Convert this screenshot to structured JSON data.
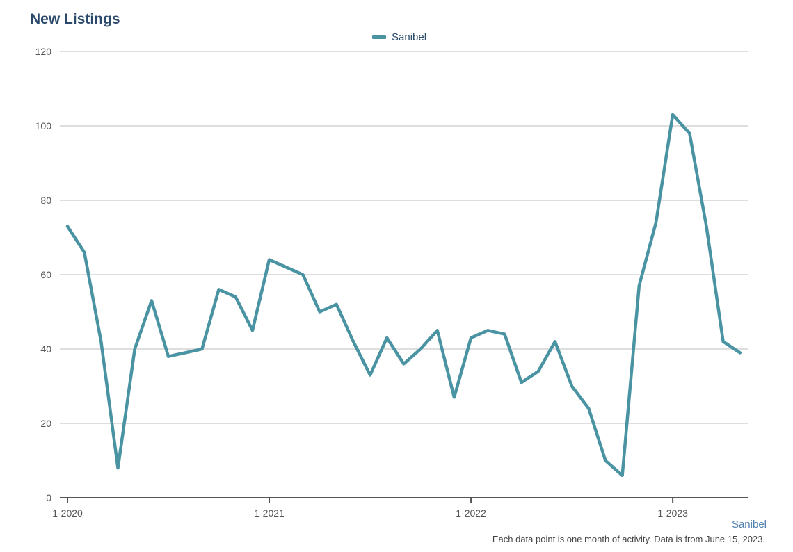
{
  "title": "New Listings",
  "source_label": "Sanibel",
  "footnote": "Each data point is one month of activity. Data is from June 15, 2023.",
  "colors": {
    "series": "#4a93a3",
    "grid": "#c9c9c9",
    "axis": "#555555",
    "title": "#2b4a6b"
  },
  "chart_data": {
    "type": "line",
    "title": "New Listings",
    "xlabel": "",
    "ylabel": "",
    "ylim": [
      0,
      120
    ],
    "yticks": [
      0,
      20,
      40,
      60,
      80,
      100,
      120
    ],
    "grid": true,
    "legend_position": "top-center",
    "x_tick_labels": [
      "1-2020",
      "1-2021",
      "1-2022",
      "1-2023"
    ],
    "x_tick_months": [
      "2020-01",
      "2021-01",
      "2022-01",
      "2023-01"
    ],
    "x": [
      "2020-01",
      "2020-02",
      "2020-03",
      "2020-04",
      "2020-05",
      "2020-06",
      "2020-07",
      "2020-08",
      "2020-09",
      "2020-10",
      "2020-11",
      "2020-12",
      "2021-01",
      "2021-02",
      "2021-03",
      "2021-04",
      "2021-05",
      "2021-06",
      "2021-07",
      "2021-08",
      "2021-09",
      "2021-10",
      "2021-11",
      "2021-12",
      "2022-01",
      "2022-02",
      "2022-03",
      "2022-04",
      "2022-05",
      "2022-06",
      "2022-07",
      "2022-08",
      "2022-09",
      "2022-10",
      "2022-11",
      "2022-12",
      "2023-01",
      "2023-02",
      "2023-03",
      "2023-04",
      "2023-05"
    ],
    "series": [
      {
        "name": "Sanibel",
        "values": [
          73,
          66,
          42,
          8,
          40,
          53,
          38,
          39,
          40,
          56,
          54,
          45,
          64,
          62,
          60,
          50,
          52,
          42,
          33,
          43,
          36,
          40,
          45,
          27,
          43,
          45,
          44,
          31,
          34,
          42,
          30,
          24,
          10,
          6,
          57,
          74,
          103,
          98,
          73,
          42,
          39
        ]
      }
    ]
  }
}
